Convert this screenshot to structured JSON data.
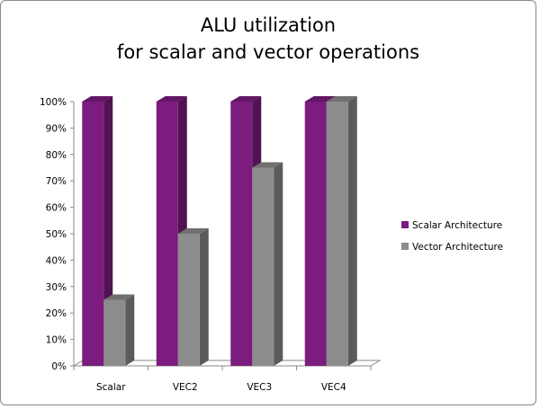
{
  "chart_data": {
    "type": "bar",
    "title_lines": [
      "ALU utilization",
      "for scalar and vector operations"
    ],
    "categories": [
      "Scalar",
      "VEC2",
      "VEC3",
      "VEC4"
    ],
    "series": [
      {
        "name": "Scalar Architecture",
        "values": [
          100,
          100,
          100,
          100
        ],
        "color": "#7B1C7E"
      },
      {
        "name": "Vector Architecture",
        "values": [
          25,
          50,
          75,
          100
        ],
        "color": "#8C8C8C"
      }
    ],
    "y_ticks": [
      "0%",
      "10%",
      "20%",
      "30%",
      "40%",
      "50%",
      "60%",
      "70%",
      "80%",
      "90%",
      "100%"
    ],
    "ylim": [
      0,
      100
    ],
    "grid": false,
    "legend_position": "right",
    "style": "3d-column"
  }
}
